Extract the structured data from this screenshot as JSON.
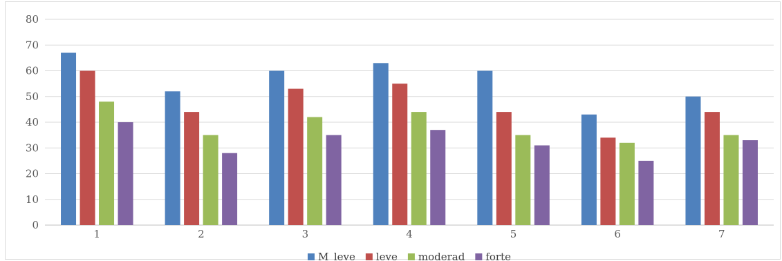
{
  "chart_data": {
    "type": "bar",
    "title": "",
    "xlabel": "",
    "ylabel": "",
    "ylim": [
      0,
      80
    ],
    "yticks": [
      0,
      10,
      20,
      30,
      40,
      50,
      60,
      70,
      80
    ],
    "grid": true,
    "legend_position": "bottom",
    "categories": [
      "1",
      "2",
      "3",
      "4",
      "5",
      "6",
      "7"
    ],
    "series": [
      {
        "name": "M_leve",
        "color": "#4f81bd",
        "values": [
          67,
          52,
          60,
          63,
          60,
          43,
          50
        ]
      },
      {
        "name": "leve",
        "color": "#c0504d",
        "values": [
          60,
          44,
          53,
          55,
          44,
          34,
          44
        ]
      },
      {
        "name": "moderad",
        "color": "#9bbb59",
        "values": [
          48,
          35,
          42,
          44,
          35,
          32,
          35
        ]
      },
      {
        "name": "forte",
        "color": "#8064a2",
        "values": [
          40,
          28,
          35,
          37,
          31,
          25,
          33
        ]
      }
    ]
  }
}
